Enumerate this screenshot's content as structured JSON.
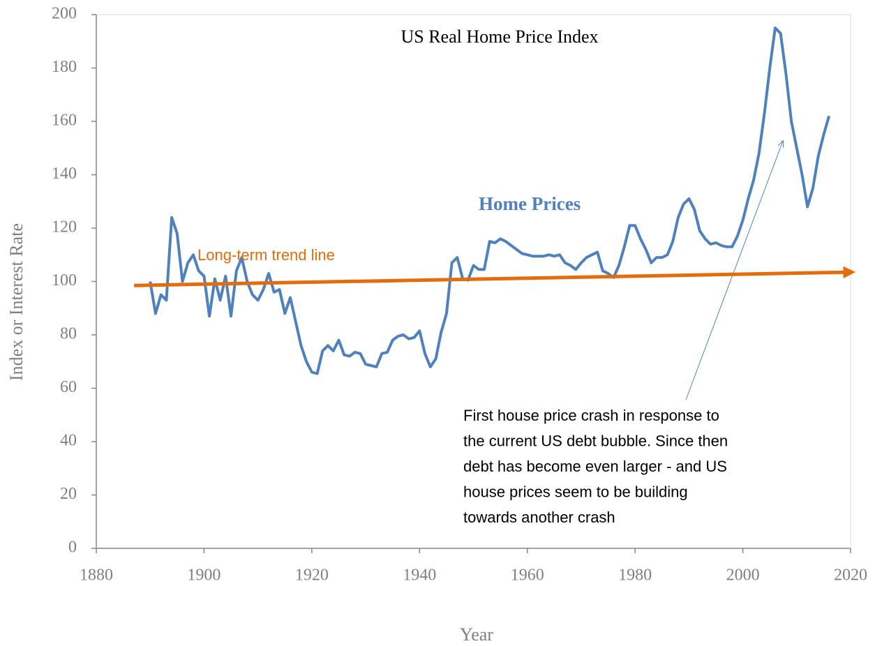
{
  "chart_data": {
    "type": "line",
    "title": "US Real Home Price Index",
    "x_label": "Year",
    "y_label": "Index or Interest Rate",
    "xlim": [
      1880,
      2020
    ],
    "xticks": [
      1880,
      1900,
      1920,
      1940,
      1960,
      1980,
      2000,
      2020
    ],
    "ylim": [
      0,
      200
    ],
    "yticks": [
      0,
      20,
      40,
      60,
      80,
      100,
      120,
      140,
      160,
      180,
      200
    ],
    "grid": false,
    "series": [
      {
        "name": "Home Prices",
        "color": "#4f81bd",
        "x": [
          1890,
          1891,
          1892,
          1893,
          1894,
          1895,
          1896,
          1897,
          1898,
          1899,
          1900,
          1901,
          1902,
          1903,
          1904,
          1905,
          1906,
          1907,
          1908,
          1909,
          1910,
          1911,
          1912,
          1913,
          1914,
          1915,
          1916,
          1917,
          1918,
          1919,
          1920,
          1921,
          1922,
          1923,
          1924,
          1925,
          1926,
          1927,
          1928,
          1929,
          1930,
          1931,
          1932,
          1933,
          1934,
          1935,
          1936,
          1937,
          1938,
          1939,
          1940,
          1941,
          1942,
          1943,
          1944,
          1945,
          1946,
          1947,
          1948,
          1949,
          1950,
          1951,
          1952,
          1953,
          1954,
          1955,
          1956,
          1957,
          1958,
          1959,
          1960,
          1961,
          1962,
          1963,
          1964,
          1965,
          1966,
          1967,
          1968,
          1969,
          1970,
          1971,
          1972,
          1973,
          1974,
          1975,
          1976,
          1977,
          1978,
          1979,
          1980,
          1981,
          1982,
          1983,
          1984,
          1985,
          1986,
          1987,
          1988,
          1989,
          1990,
          1991,
          1992,
          1993,
          1994,
          1995,
          1996,
          1997,
          1998,
          1999,
          2000,
          2001,
          2002,
          2003,
          2004,
          2005,
          2006,
          2007,
          2008,
          2009,
          2010,
          2011,
          2012,
          2013,
          2014,
          2015,
          2016
        ],
        "values": [
          100,
          88,
          95,
          93,
          124,
          118,
          100,
          107,
          110,
          104,
          102,
          87,
          101,
          93,
          102,
          87,
          104,
          109,
          100,
          95,
          93,
          97,
          103,
          96,
          97,
          88,
          94,
          85,
          76,
          70,
          66,
          65.5,
          74,
          76,
          74,
          78,
          72.5,
          72,
          73.5,
          73,
          69,
          68.5,
          68,
          73,
          73.5,
          78,
          79.5,
          80,
          78.5,
          79,
          81.5,
          73,
          68,
          71,
          81,
          88,
          107,
          109,
          101,
          100.5,
          106,
          104.5,
          104.5,
          115,
          114.5,
          116,
          115,
          113.5,
          112,
          110.5,
          110,
          109.5,
          109.5,
          109.5,
          110,
          109.5,
          110,
          107,
          106,
          104.5,
          107,
          109,
          110,
          111,
          104,
          103,
          101.5,
          106,
          113,
          121,
          121,
          116,
          112,
          107,
          109,
          109,
          110,
          115,
          124,
          129,
          131,
          127,
          119,
          116,
          114,
          114.5,
          113.5,
          113,
          113,
          117,
          123,
          131,
          138,
          148,
          163,
          180,
          195,
          193,
          178,
          160,
          150,
          140,
          128,
          135,
          147,
          155,
          162
        ]
      },
      {
        "name": "Long-term trend line",
        "color": "#e46c0a",
        "x": [
          1887,
          2020
        ],
        "values": [
          98.5,
          103.5
        ]
      }
    ],
    "annotation": [
      "First house price crash in response to",
      "the current US debt bubble. Since then",
      "debt has become even larger - and US",
      "house prices seem to be building",
      "towards another crash"
    ]
  }
}
